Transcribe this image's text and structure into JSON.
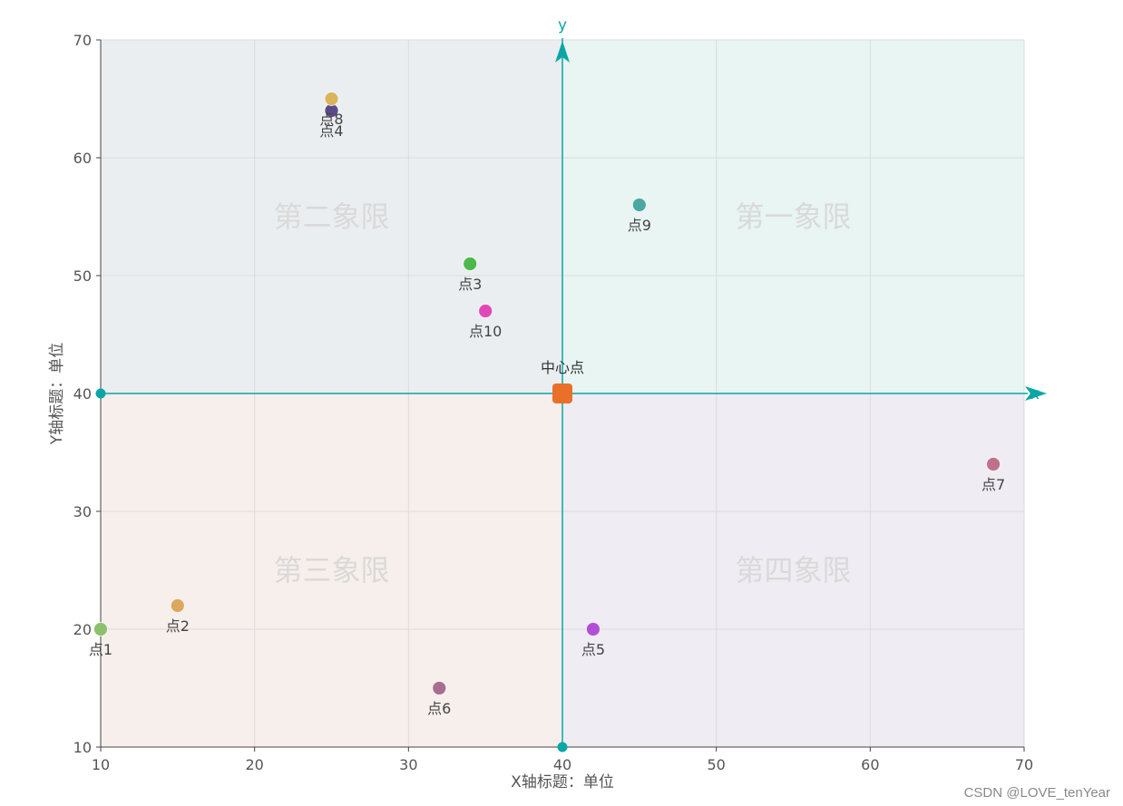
{
  "chart_data": {
    "type": "scatter",
    "xlabel": "X轴标题：单位",
    "ylabel": "Y轴标题：单位",
    "xlim": [
      10,
      70
    ],
    "ylim": [
      10,
      70
    ],
    "xticks": [
      10,
      20,
      30,
      40,
      50,
      60,
      70
    ],
    "yticks": [
      10,
      20,
      30,
      40,
      50,
      60,
      70
    ],
    "grid": true,
    "center": {
      "x": 40,
      "y": 40,
      "label": "中心点",
      "color": "#e8702a"
    },
    "center_axes": {
      "x_label": "x",
      "y_label": "y",
      "color": "#0aa6a6"
    },
    "quadrants": [
      {
        "label": "第一象限",
        "color": "#e8f5f2"
      },
      {
        "label": "第二象限",
        "color": "#ebeef1"
      },
      {
        "label": "第三象限",
        "color": "#f7efeb"
      },
      {
        "label": "第四象限",
        "color": "#efecf3"
      }
    ],
    "points": [
      {
        "label": "点1",
        "x": 10,
        "y": 20,
        "color": "#8cc06e"
      },
      {
        "label": "点2",
        "x": 15,
        "y": 22,
        "color": "#dba85e"
      },
      {
        "label": "点3",
        "x": 34,
        "y": 51,
        "color": "#4bb84b"
      },
      {
        "label": "点4",
        "x": 25,
        "y": 64,
        "color": "#5a4a8a"
      },
      {
        "label": "点5",
        "x": 42,
        "y": 20,
        "color": "#b04fd6"
      },
      {
        "label": "点6",
        "x": 32,
        "y": 15,
        "color": "#a86e8e"
      },
      {
        "label": "点7",
        "x": 68,
        "y": 34,
        "color": "#c0708a"
      },
      {
        "label": "点8",
        "x": 25,
        "y": 65,
        "color": "#d9b45a"
      },
      {
        "label": "点9",
        "x": 45,
        "y": 56,
        "color": "#4aa8a0"
      },
      {
        "label": "点10",
        "x": 35,
        "y": 47,
        "color": "#e048b8"
      }
    ]
  },
  "watermark": "CSDN @LOVE_tenYear"
}
